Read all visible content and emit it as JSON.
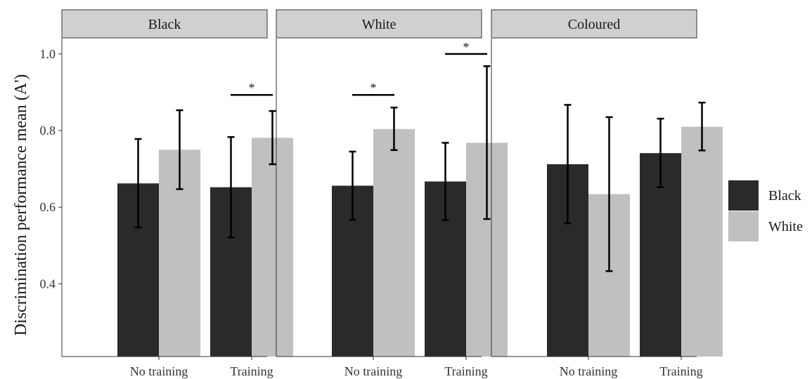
{
  "chart_data": {
    "type": "bar",
    "facets": [
      "Black",
      "White",
      "Coloured"
    ],
    "categories": [
      "No training",
      "Training"
    ],
    "series_colors": [
      "#2a2a2a",
      "#c0c0c0"
    ],
    "legend": {
      "position": "right",
      "entries": [
        {
          "name": "Black",
          "color": "#2a2a2a"
        },
        {
          "name": "White",
          "color": "#c0c0c0"
        }
      ]
    },
    "ylabel": "Discrimination performance mean (A')",
    "xlabel": "",
    "ylim": [
      0.21,
      1.04
    ],
    "yticks": [
      0.4,
      0.6,
      0.8,
      1.0
    ],
    "ytick_labels": [
      "0.4",
      "0.6",
      "0.8",
      "1.0"
    ],
    "grid": false,
    "panels": [
      {
        "facet": "Black",
        "bars": [
          {
            "category": "No training",
            "series": "Black",
            "value": 0.662,
            "low": 0.547,
            "high": 0.778
          },
          {
            "category": "No training",
            "series": "White",
            "value": 0.75,
            "low": 0.647,
            "high": 0.853
          },
          {
            "category": "Training",
            "series": "Black",
            "value": 0.652,
            "low": 0.521,
            "high": 0.783
          },
          {
            "category": "Training",
            "series": "White",
            "value": 0.781,
            "low": 0.712,
            "high": 0.851
          }
        ],
        "significance": [
          {
            "category": "Training",
            "y": 0.893,
            "label": "*"
          }
        ]
      },
      {
        "facet": "White",
        "bars": [
          {
            "category": "No training",
            "series": "Black",
            "value": 0.656,
            "low": 0.567,
            "high": 0.745
          },
          {
            "category": "No training",
            "series": "White",
            "value": 0.804,
            "low": 0.749,
            "high": 0.86
          },
          {
            "category": "Training",
            "series": "Black",
            "value": 0.667,
            "low": 0.566,
            "high": 0.768
          },
          {
            "category": "Training",
            "series": "White",
            "value": 0.768,
            "low": 0.569,
            "high": 0.968
          }
        ],
        "significance": [
          {
            "category": "No training",
            "y": 0.893,
            "label": "*"
          },
          {
            "category": "Training",
            "y": 1.0,
            "label": "*"
          }
        ]
      },
      {
        "facet": "Coloured",
        "bars": [
          {
            "category": "No training",
            "series": "Black",
            "value": 0.712,
            "low": 0.558,
            "high": 0.867
          },
          {
            "category": "No training",
            "series": "White",
            "value": 0.634,
            "low": 0.433,
            "high": 0.835
          },
          {
            "category": "Training",
            "series": "Black",
            "value": 0.741,
            "low": 0.652,
            "high": 0.831
          },
          {
            "category": "Training",
            "series": "White",
            "value": 0.81,
            "low": 0.748,
            "high": 0.873
          }
        ],
        "significance": []
      }
    ]
  }
}
